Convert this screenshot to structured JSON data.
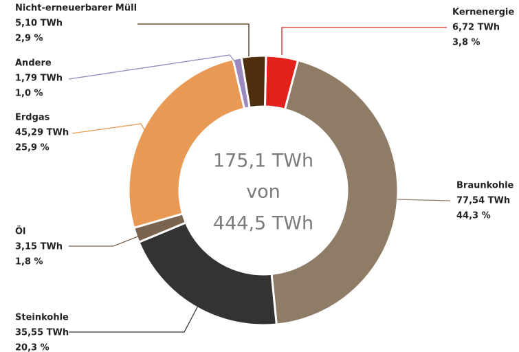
{
  "chart_data": {
    "type": "donut",
    "center_label": [
      "175,1 TWh",
      "von",
      "444,5 TWh"
    ],
    "categories": [
      "Kernenergie",
      "Braunkohle",
      "Steinkohle",
      "Öl",
      "Erdgas",
      "Andere",
      "Nicht-erneuerbarer Müll"
    ],
    "values": [
      6.72,
      77.54,
      35.55,
      3.15,
      45.29,
      1.79,
      5.1
    ],
    "value_labels": [
      "6,72 TWh",
      "77,54 TWh",
      "35,55 TWh",
      "3,15 TWh",
      "45,29 TWh",
      "1,79 TWh",
      "5,10 TWh"
    ],
    "percent_labels": [
      "3,8 %",
      "44,3 %",
      "20,3 %",
      "1,8 %",
      "25,9 %",
      "1,0 %",
      "2,9 %"
    ],
    "colors": [
      "#e3201b",
      "#8e7c66",
      "#333333",
      "#7a6450",
      "#e89a55",
      "#9b88be",
      "#4d2f0e"
    ]
  }
}
